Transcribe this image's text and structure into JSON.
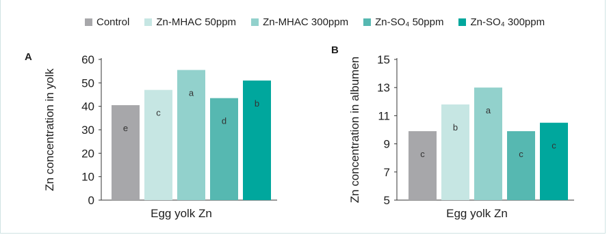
{
  "legend": [
    {
      "label": "Control",
      "color": "#a7a7aa"
    },
    {
      "label": "Zn-MHAC 50ppm",
      "color": "#c6e6e3"
    },
    {
      "label": "Zn-MHAC 300ppm",
      "color": "#92d1cc"
    },
    {
      "label": "Zn-SO₄ 50ppm",
      "color": "#56b8b1"
    },
    {
      "label": "Zn-SO₄ 300ppm",
      "color": "#00a79d"
    }
  ],
  "chart_data": [
    {
      "type": "bar",
      "panel": "A",
      "categories": [
        "Control",
        "Zn-MHAC 50ppm",
        "Zn-MHAC 300ppm",
        "Zn-SO₄ 50ppm",
        "Zn-SO₄ 300ppm"
      ],
      "values": [
        40.5,
        47,
        55.5,
        43.5,
        51
      ],
      "annotations": [
        "e",
        "c",
        "a",
        "d",
        "b"
      ],
      "xlabel": "Egg yolk Zn",
      "ylabel": "Zn concentration in yolk",
      "ylim": [
        0,
        60
      ],
      "yticks": [
        "0",
        "10",
        "20",
        "30",
        "40",
        "50",
        "60"
      ],
      "grid": false
    },
    {
      "type": "bar",
      "panel": "B",
      "categories": [
        "Control",
        "Zn-MHAC 50ppm",
        "Zn-MHAC 300ppm",
        "Zn-SO₄ 50ppm",
        "Zn-SO₄ 300ppm"
      ],
      "values": [
        9.9,
        11.8,
        13,
        9.9,
        10.5
      ],
      "annotations": [
        "c",
        "b",
        "a",
        "c",
        "c"
      ],
      "xlabel": "Egg yolk Zn",
      "ylabel": "Zn concentration in albumen",
      "ylim": [
        5,
        15
      ],
      "yticks": [
        "5",
        "7",
        "9",
        "11",
        "13",
        "15"
      ],
      "grid": false
    }
  ]
}
